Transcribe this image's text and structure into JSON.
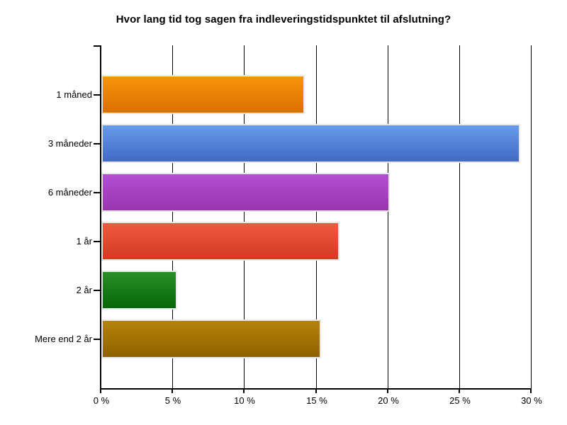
{
  "chart_data": {
    "type": "bar",
    "orientation": "horizontal",
    "title": "Hvor lang tid tog sagen fra indleveringstidspunktet til afslutning?",
    "categories": [
      "1 måned",
      "3 måneder",
      "6 måneder",
      "1 år",
      "2 år",
      "Mere end 2 år"
    ],
    "values": [
      14.2,
      29.2,
      20.1,
      16.6,
      5.3,
      15.3
    ],
    "unit": "%",
    "xlim": [
      0,
      30
    ],
    "x_ticks": [
      0,
      5,
      10,
      15,
      20,
      25,
      30
    ],
    "x_tick_labels": [
      "0 %",
      "5 %",
      "10 %",
      "15 %",
      "20 %",
      "25 %",
      "30 %"
    ],
    "grid": "vertical-black-lines",
    "legend": "none",
    "bar_colors": [
      {
        "name": "orange",
        "top": "#F8940B",
        "bottom": "#D97000"
      },
      {
        "name": "blue",
        "top": "#689BE9",
        "bottom": "#4169C6"
      },
      {
        "name": "purple",
        "top": "#B34FD3",
        "bottom": "#9A35AF"
      },
      {
        "name": "red",
        "top": "#F15A41",
        "bottom": "#D23A22"
      },
      {
        "name": "green",
        "top": "#2A8F28",
        "bottom": "#066606"
      },
      {
        "name": "dark-gold",
        "top": "#B5820A",
        "bottom": "#8F6200"
      }
    ],
    "bar_border_color": "#E8E8E8",
    "axis_color": "#000000",
    "background": "#FFFFFF",
    "title_color": "#000000"
  }
}
